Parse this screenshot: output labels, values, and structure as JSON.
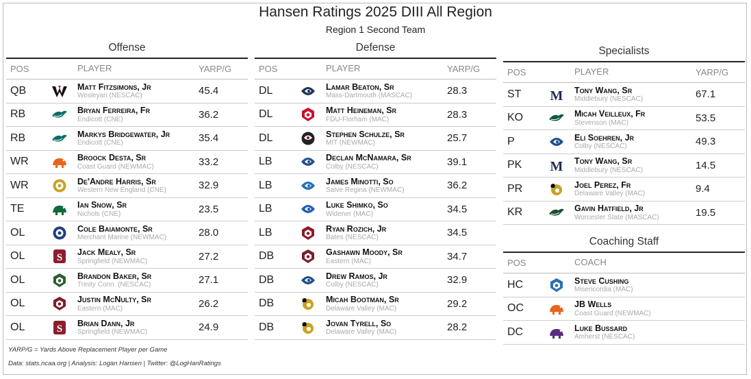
{
  "title": "Hansen Ratings 2025 DIII All Region",
  "subtitle": "Region 1 Second Team",
  "offense": {
    "title": "Offense",
    "headers": {
      "pos": "POS",
      "player": "PLAYER",
      "val": "YARP/G"
    },
    "rows": [
      {
        "pos": "QB",
        "name": "Matt Fitzsimons, Jr",
        "team": "Wesleyan (NESCAC)",
        "val": "45.4",
        "logo": "wesleyan-cardinal-logo",
        "color": "#b5121b"
      },
      {
        "pos": "RB",
        "name": "Bryan Ferreira, Fr",
        "team": "Endicott (CNE)",
        "val": "36.2",
        "logo": "endicott-gull-logo",
        "color": "#0b6e63"
      },
      {
        "pos": "RB",
        "name": "Markys Bridgewater, Jr",
        "team": "Endicott (CNE)",
        "val": "35.4",
        "logo": "endicott-gull-logo",
        "color": "#0b6e63"
      },
      {
        "pos": "WR",
        "name": "Broock Desta, Sr",
        "team": "Coast Guard (NEWMAC)",
        "val": "33.2",
        "logo": "coast-guard-bear-logo",
        "color": "#e8641b"
      },
      {
        "pos": "WR",
        "name": "De'Andre Harris, Sr",
        "team": "Western New England (CNE)",
        "val": "32.9",
        "logo": "wne-seal-logo",
        "color": "#c9a227"
      },
      {
        "pos": "TE",
        "name": "Ian Snow, Sr",
        "team": "Nichols (CNE)",
        "val": "23.5",
        "logo": "nichols-bison-logo",
        "color": "#0e6b3a"
      },
      {
        "pos": "OL",
        "name": "Cole Baiamonte, Sr",
        "team": "Merchant Marine (NEWMAC)",
        "val": "28.0",
        "logo": "merchant-marine-seal-logo",
        "color": "#1f3f7a"
      },
      {
        "pos": "OL",
        "name": "Jack Mealy, Sr",
        "team": "Springfield (NEWMAC)",
        "val": "27.2",
        "logo": "springfield-s-logo",
        "color": "#8b1e2d"
      },
      {
        "pos": "OL",
        "name": "Brandon Baker, Sr",
        "team": "Trinity Conn. (NESCAC)",
        "val": "27.1",
        "logo": "trinity-bantam-logo",
        "color": "#2d5e2e"
      },
      {
        "pos": "OL",
        "name": "Justin McNulty, Sr",
        "team": "Eastern (MAC)",
        "val": "26.2",
        "logo": "eastern-eagle-logo",
        "color": "#7a1f2e"
      },
      {
        "pos": "OL",
        "name": "Brian Dann, Jr",
        "team": "Springfield (NEWMAC)",
        "val": "24.9",
        "logo": "springfield-s-logo",
        "color": "#8b1e2d"
      }
    ]
  },
  "defense": {
    "title": "Defense",
    "headers": {
      "pos": "POS",
      "player": "PLAYER",
      "val": "YARP/G"
    },
    "rows": [
      {
        "pos": "DL",
        "name": "Lamar Beaton, Sr",
        "team": "Mass-Dartmouth (MASCAC)",
        "val": "28.3",
        "logo": "umassd-corsair-logo",
        "color": "#1d3557"
      },
      {
        "pos": "DL",
        "name": "Matt Heineman, Sr",
        "team": "FDU-Florham (MAC)",
        "val": "28.3",
        "logo": "fdu-devil-logo",
        "color": "#c8102e"
      },
      {
        "pos": "DL",
        "name": "Stephen Schulze, Sr",
        "team": "MIT (NEWMAC)",
        "val": "25.7",
        "logo": "mit-beaver-logo",
        "color": "#8a1538"
      },
      {
        "pos": "LB",
        "name": "Declan McNamara, Sr",
        "team": "Colby (NESCAC)",
        "val": "39.1",
        "logo": "colby-mule-logo",
        "color": "#1f4e8c"
      },
      {
        "pos": "LB",
        "name": "James Minotti, So",
        "team": "Salve Regina (NEWMAC)",
        "val": "36.2",
        "logo": "salve-seahawk-logo",
        "color": "#1e6fb5"
      },
      {
        "pos": "LB",
        "name": "Luke Shimko, So",
        "team": "Widener (MAC)",
        "val": "34.5",
        "logo": "widener-pride-logo",
        "color": "#1f5fb3"
      },
      {
        "pos": "LB",
        "name": "Ryan Rozich, Jr",
        "team": "Bates (NESCAC)",
        "val": "34.5",
        "logo": "bates-bobcat-logo",
        "color": "#8b1a2b"
      },
      {
        "pos": "DB",
        "name": "Gashawn Moody, Sr",
        "team": "Eastern (MAC)",
        "val": "34.7",
        "logo": "eastern-eagle-logo",
        "color": "#7a1f2e"
      },
      {
        "pos": "DB",
        "name": "Drew Ramos, Jr",
        "team": "Colby (NESCAC)",
        "val": "32.9",
        "logo": "colby-mule-logo",
        "color": "#1f4e8c"
      },
      {
        "pos": "DB",
        "name": "Micah Bootman, Sr",
        "team": "Delaware Valley (MAC)",
        "val": "29.2",
        "logo": "delval-ram-logo",
        "color": "#c9a227"
      },
      {
        "pos": "DB",
        "name": "Jovan Tyrell, So",
        "team": "Delaware Valley (MAC)",
        "val": "28.2",
        "logo": "delval-ram-logo",
        "color": "#c9a227"
      }
    ]
  },
  "specialists": {
    "title": "Specialists",
    "headers": {
      "pos": "POS",
      "player": "PLAYER",
      "val": "YARP/G"
    },
    "rows": [
      {
        "pos": "ST",
        "name": "Tony Wang, Sr",
        "team": "Middlebury (NESCAC)",
        "val": "67.1",
        "logo": "middlebury-m-logo",
        "color": "#1b2b55"
      },
      {
        "pos": "KO",
        "name": "Micah Veilleux, Fr",
        "team": "Stevenson (MAC)",
        "val": "53.5",
        "logo": "stevenson-mustang-logo",
        "color": "#0f5a3d"
      },
      {
        "pos": "P",
        "name": "Eli Soehren, Jr",
        "team": "Colby (NESCAC)",
        "val": "49.3",
        "logo": "colby-mule-logo",
        "color": "#1f4e8c"
      },
      {
        "pos": "PK",
        "name": "Tony Wang, Sr",
        "team": "Middlebury (NESCAC)",
        "val": "14.5",
        "logo": "middlebury-m-logo",
        "color": "#1b2b55"
      },
      {
        "pos": "PR",
        "name": "Joel Perez, Fr",
        "team": "Delaware Valley (MAC)",
        "val": "9.4",
        "logo": "delval-ram-logo",
        "color": "#c9a227"
      },
      {
        "pos": "KR",
        "name": "Gavin Hatfield, Jr",
        "team": "Worcester State (MASCAC)",
        "val": "19.5",
        "logo": "worcester-lancer-logo",
        "color": "#1a4d2e"
      }
    ]
  },
  "coaching": {
    "title": "Coaching Staff",
    "headers": {
      "pos": "POS",
      "player": "COACH"
    },
    "rows": [
      {
        "pos": "HC",
        "name": "Steve Cushing",
        "team": "Misericordia (MAC)",
        "logo": "misericordia-cougar-logo",
        "color": "#2a6fb5"
      },
      {
        "pos": "OC",
        "name": "JB Wells",
        "team": "Coast Guard (NEWMAC)",
        "logo": "coast-guard-bear-logo",
        "color": "#e8641b"
      },
      {
        "pos": "DC",
        "name": "Luke Bussard",
        "team": "Amherst (NESCAC)",
        "logo": "amherst-mammoth-logo",
        "color": "#5a2c83"
      }
    ]
  },
  "notes": {
    "definition": "YARP/G = Yards Above Replacement Player per Game",
    "credits": "Data: stats.ncaa.org | Analysis: Logan Hansen | Twitter: @LogHanRatings"
  }
}
